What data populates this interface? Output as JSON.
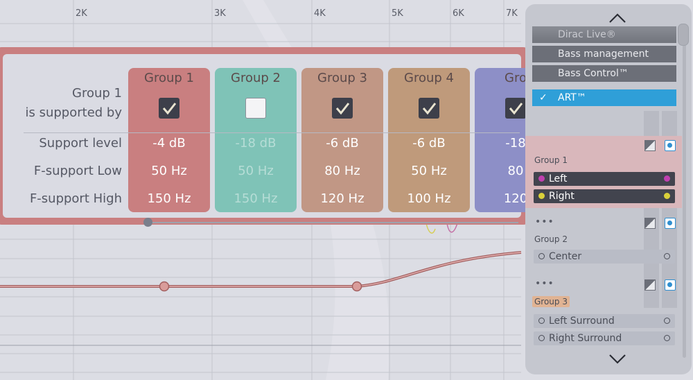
{
  "frequency_axis": [
    "2K",
    "3K",
    "4K",
    "5K",
    "6K",
    "7K"
  ],
  "popup": {
    "title_line1": "Group 1",
    "title_line2": "is supported by",
    "row_labels": {
      "support_level": "Support level",
      "f_low": "F-support Low",
      "f_high": "F-support High"
    },
    "groups": [
      {
        "name": "Group 1",
        "checked": true,
        "level": "-4 dB",
        "low": "50 Hz",
        "high": "150 Hz",
        "color": "#c97f80"
      },
      {
        "name": "Group 2",
        "checked": false,
        "level": "-18 dB",
        "low": "50 Hz",
        "high": "150 Hz",
        "color": "#7fc3b7"
      },
      {
        "name": "Group 3",
        "checked": true,
        "level": "-6 dB",
        "low": "80 Hz",
        "high": "120 Hz",
        "color": "#c19785"
      },
      {
        "name": "Group 4",
        "checked": true,
        "level": "-6 dB",
        "low": "50 Hz",
        "high": "100 Hz",
        "color": "#bf9a7b"
      },
      {
        "name": "Gro",
        "checked": true,
        "level": "-18",
        "low": "80",
        "high": "120",
        "color": "#8d8fc7"
      }
    ]
  },
  "sidebar": {
    "menu": [
      {
        "label": "Dirac Live®",
        "state": "dim"
      },
      {
        "label": "Bass management",
        "state": "normal"
      },
      {
        "label": "Bass Control™",
        "state": "normal"
      },
      {
        "label": "ART™",
        "state": "active",
        "check": "✓"
      }
    ],
    "more": "•••",
    "group1": {
      "label": "Group 1",
      "channels": [
        {
          "name": "Left",
          "color": "#c040b0"
        },
        {
          "name": "Right",
          "color": "#d9d03a"
        }
      ]
    },
    "group2": {
      "label": "Group 2",
      "channels": [
        {
          "name": "Center"
        }
      ]
    },
    "group3": {
      "label": "Group 3",
      "channels": [
        {
          "name": "Left Surround"
        },
        {
          "name": "Right Surround"
        }
      ]
    }
  }
}
